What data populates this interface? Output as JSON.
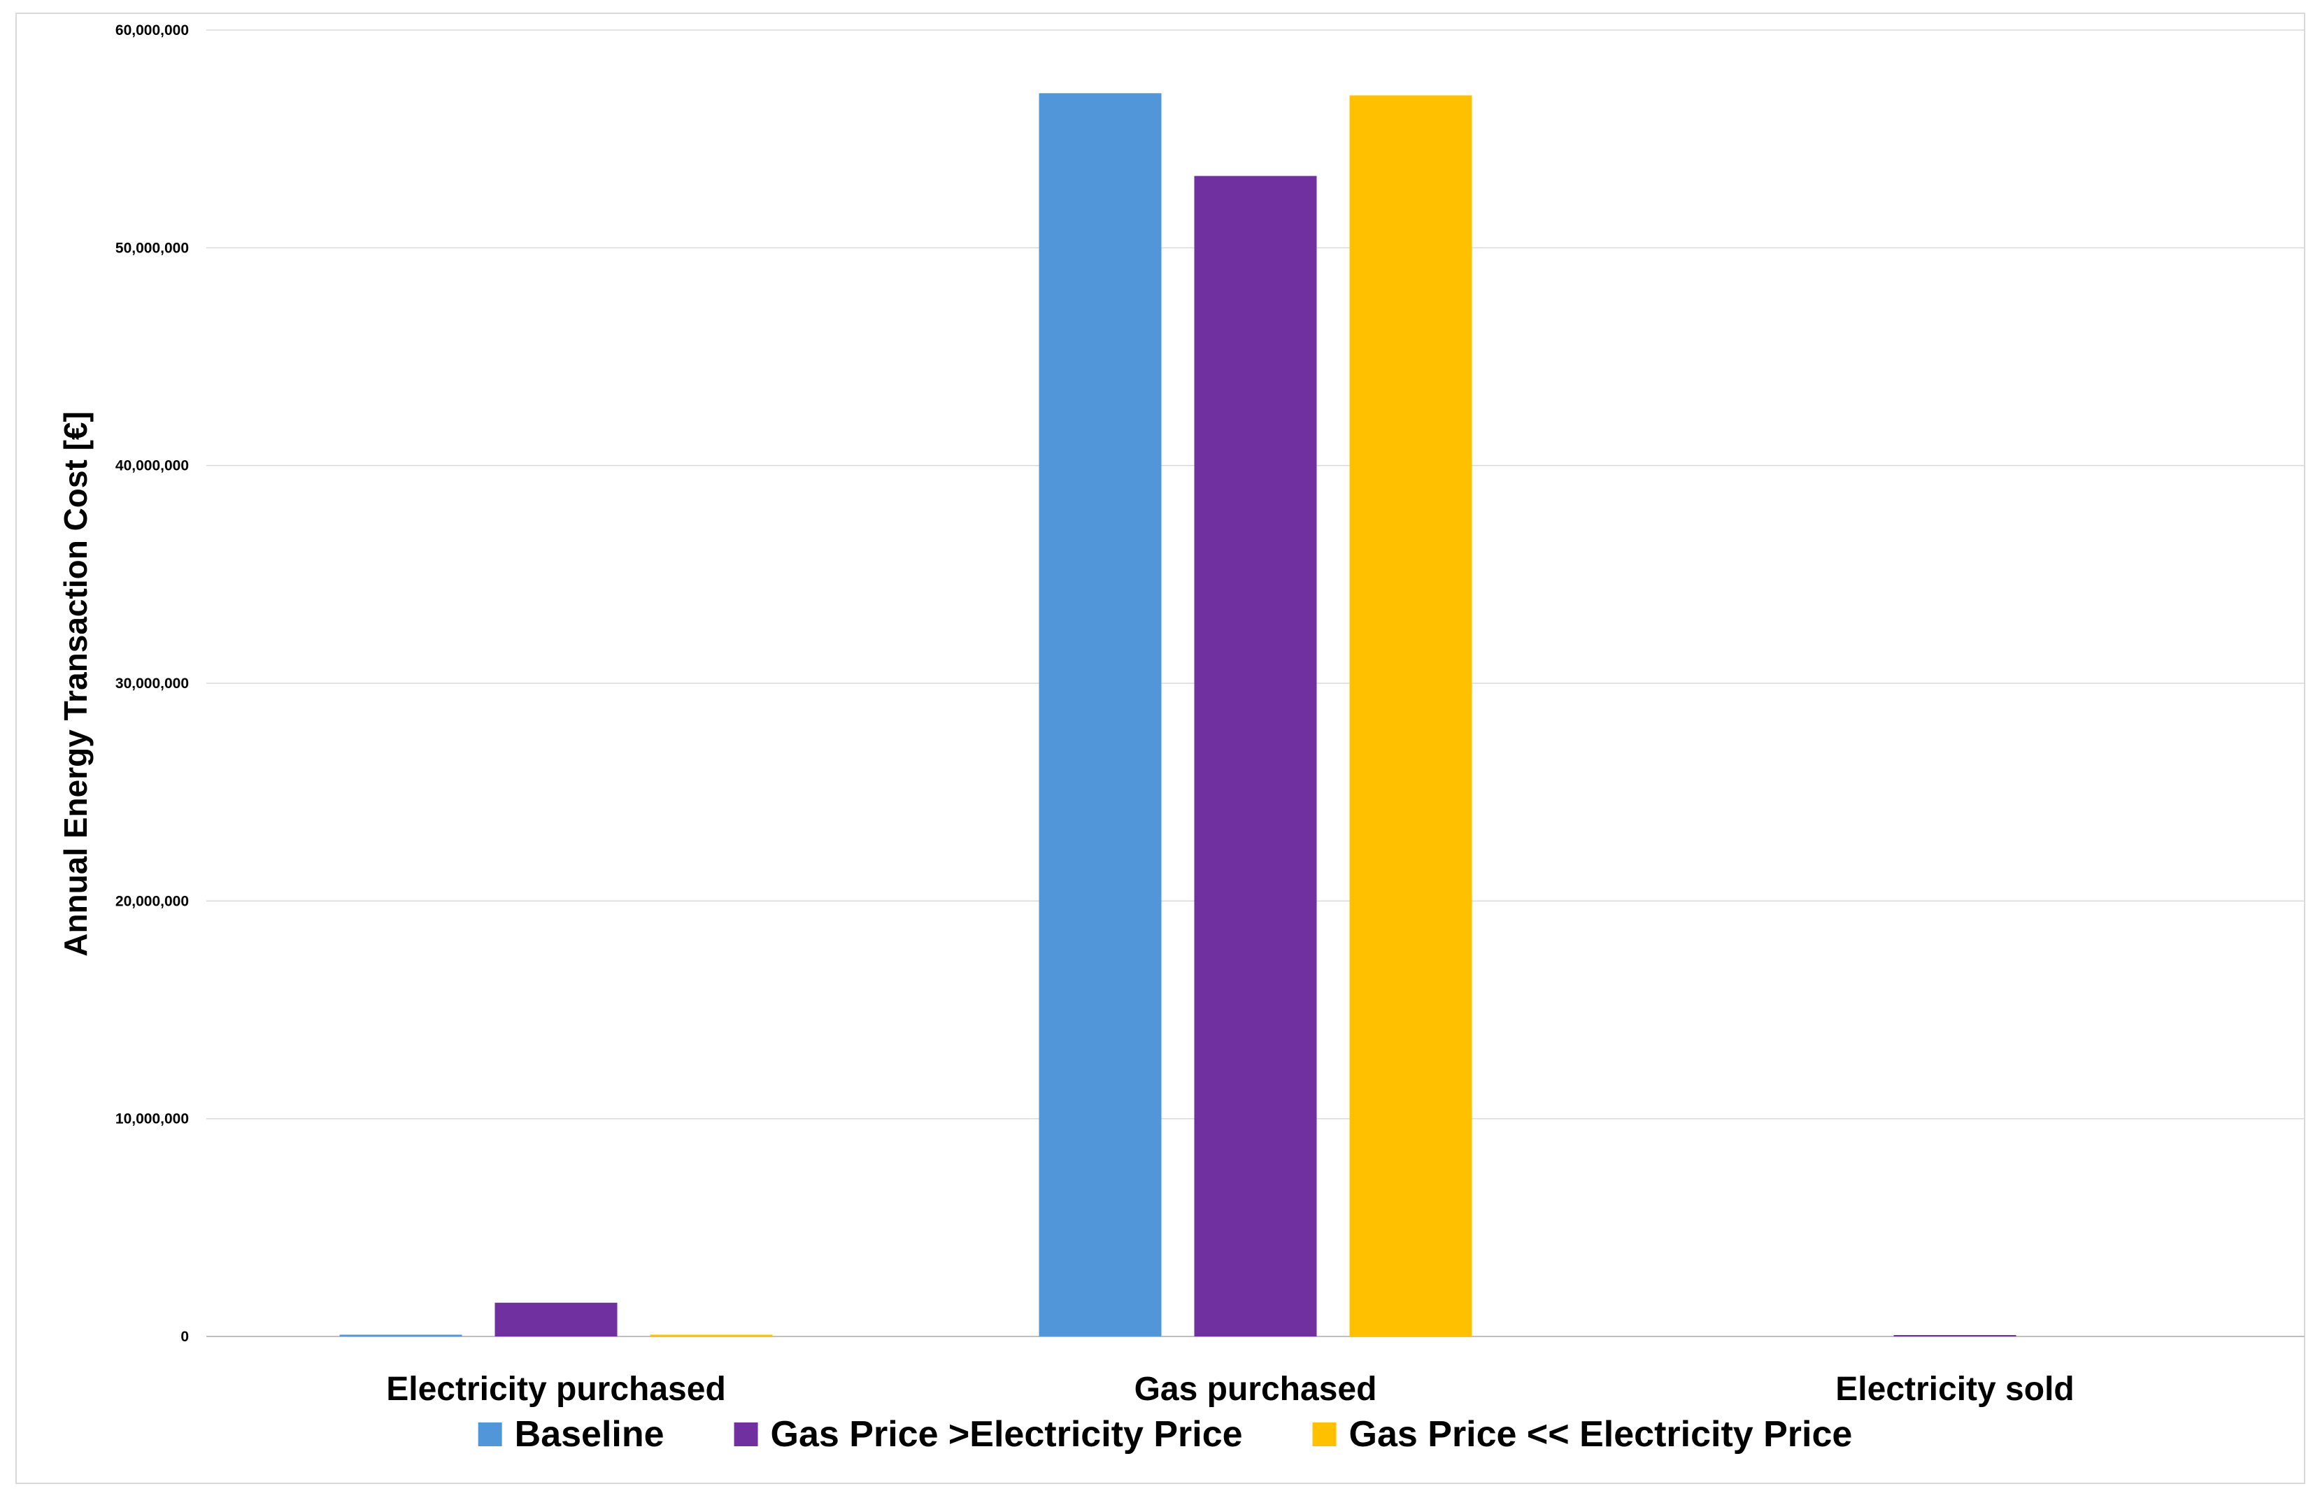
{
  "chart_data": {
    "type": "bar",
    "title": "",
    "xlabel": "",
    "ylabel": "Annual Energy Transaction Cost [€]",
    "categories": [
      "Electricity purchased",
      "Gas  purchased",
      "Electricity sold"
    ],
    "series": [
      {
        "name": "Baseline",
        "color": "#5096D8",
        "values": [
          80000,
          57100000,
          0
        ]
      },
      {
        "name": "Gas Price >Electricity Price",
        "color": "#7030A0",
        "values": [
          1550000,
          53300000,
          60000
        ]
      },
      {
        "name": "Gas Price << Electricity Price",
        "color": "#FFC000",
        "values": [
          80000,
          57000000,
          0
        ]
      }
    ],
    "ylim": [
      0,
      60000000
    ],
    "yticks": [
      0,
      10000000,
      20000000,
      30000000,
      40000000,
      50000000,
      60000000
    ],
    "ytick_labels": [
      "0",
      "10,000,000",
      "20,000,000",
      "30,000,000",
      "40,000,000",
      "50,000,000",
      "60,000,000"
    ],
    "grid": true,
    "legend_position": "bottom"
  }
}
